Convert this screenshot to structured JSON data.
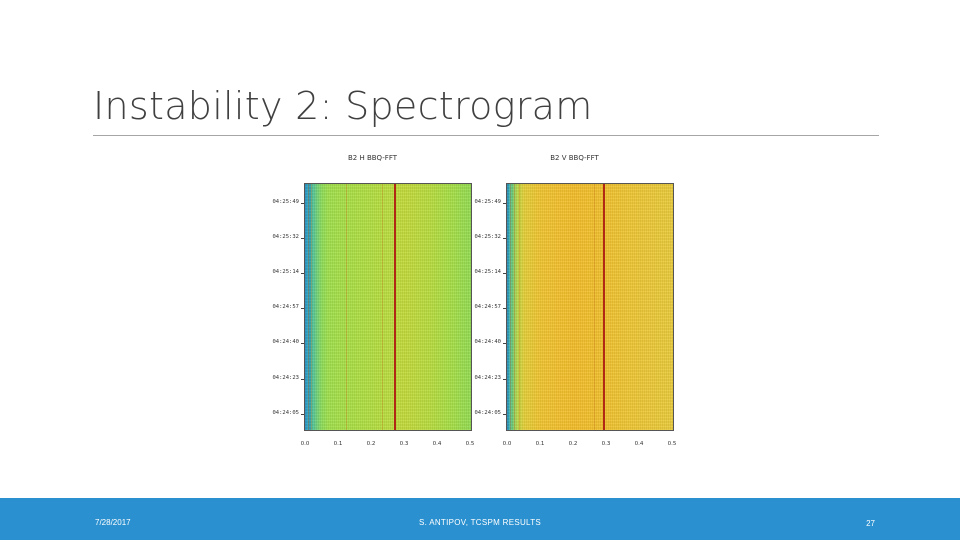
{
  "slide": {
    "title": "Instability 2: Spectrogram"
  },
  "figures": [
    {
      "title": "B2 H BBQ-FFT",
      "y_ticks": [
        "04:25:49",
        "04:25:32",
        "04:25:14",
        "04:24:57",
        "04:24:40",
        "04:24:23",
        "04:24:05"
      ],
      "x_ticks": [
        "0.0",
        "0.1",
        "0.2",
        "0.3",
        "0.4",
        "0.5"
      ],
      "peak_tune": 0.27,
      "colors": {
        "background": "#acdf44",
        "peak": "#9a1010"
      }
    },
    {
      "title": "B2 V BBQ-FFT",
      "y_ticks": [
        "04:25:49",
        "04:25:32",
        "04:25:14",
        "04:24:57",
        "04:24:40",
        "04:24:23",
        "04:24:05"
      ],
      "x_ticks": [
        "0.0",
        "0.1",
        "0.2",
        "0.3",
        "0.4",
        "0.5"
      ],
      "peak_tune": 0.29,
      "colors": {
        "background": "#f3bd2a",
        "peak": "#9a1010"
      }
    }
  ],
  "footer": {
    "date": "7/28/2017",
    "center": "S. ANTIPOV, TCSPM RESULTS",
    "page": "27",
    "background": "#2a90cf"
  }
}
